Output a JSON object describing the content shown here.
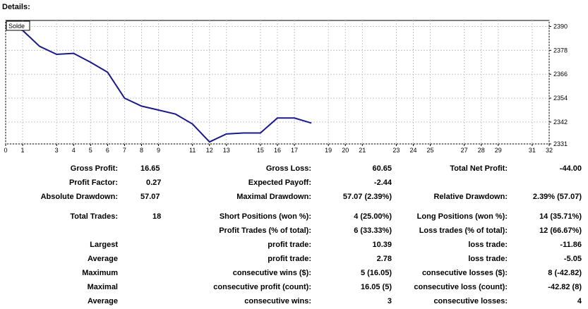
{
  "title": "Details:",
  "chart_data": {
    "type": "line",
    "legend": "Solde",
    "x": [
      0,
      1,
      2,
      3,
      4,
      5,
      6,
      7,
      8,
      9,
      10,
      11,
      12,
      13,
      14,
      15,
      16,
      17,
      18
    ],
    "values": [
      2390,
      2388,
      2380,
      2376,
      2376.5,
      2372,
      2367,
      2354,
      2350,
      2348,
      2346,
      2341,
      2332,
      2336,
      2336.5,
      2336.5,
      2344,
      2344,
      2341.5
    ],
    "xlim": [
      0,
      32
    ],
    "ylim": [
      2331,
      2393
    ],
    "x_ticks": [
      0,
      1,
      3,
      4,
      5,
      6,
      7,
      8,
      9,
      11,
      12,
      13,
      15,
      16,
      17,
      19,
      20,
      21,
      23,
      24,
      25,
      27,
      28,
      29,
      31,
      32
    ],
    "y_ticks": [
      2390,
      2378,
      2366,
      2354,
      2342,
      2331
    ],
    "line_color": "#1a1a8c"
  },
  "stats": {
    "gross_profit_label": "Gross Profit:",
    "gross_profit": "16.65",
    "gross_loss_label": "Gross Loss:",
    "gross_loss": "60.65",
    "total_net_profit_label": "Total Net Profit:",
    "total_net_profit": "-44.00",
    "profit_factor_label": "Profit Factor:",
    "profit_factor": "0.27",
    "expected_payoff_label": "Expected Payoff:",
    "expected_payoff": "-2.44",
    "absolute_drawdown_label": "Absolute Drawdown:",
    "absolute_drawdown": "57.07",
    "maximal_drawdown_label": "Maximal Drawdown:",
    "maximal_drawdown": "57.07 (2.39%)",
    "relative_drawdown_label": "Relative Drawdown:",
    "relative_drawdown": "2.39% (57.07)",
    "total_trades_label": "Total Trades:",
    "total_trades": "18",
    "short_positions_label": "Short Positions (won %):",
    "short_positions": "4 (25.00%)",
    "long_positions_label": "Long Positions (won %):",
    "long_positions": "14 (35.71%)",
    "profit_trades_label": "Profit Trades (% of total):",
    "profit_trades": "6 (33.33%)",
    "loss_trades_label": "Loss trades (% of total):",
    "loss_trades": "12 (66.67%)",
    "largest_label": "Largest",
    "largest_profit_label": "profit trade:",
    "largest_profit": "10.39",
    "largest_loss_label": "loss trade:",
    "largest_loss": "-11.86",
    "average_label": "Average",
    "average_profit_label": "profit trade:",
    "average_profit": "2.78",
    "average_loss_label": "loss trade:",
    "average_loss": "-5.05",
    "maximum_label": "Maximum",
    "max_consec_wins_label": "consecutive wins ($):",
    "max_consec_wins": "5 (16.05)",
    "max_consec_losses_label": "consecutive losses ($):",
    "max_consec_losses": "8 (-42.82)",
    "maximal_label": "Maximal",
    "maximal_consec_profit_label": "consecutive profit (count):",
    "maximal_consec_profit": "16.05 (5)",
    "maximal_consec_loss_label": "consecutive loss (count):",
    "maximal_consec_loss": "-42.82 (8)",
    "avg2_label": "Average",
    "avg_consec_wins_label": "consecutive wins:",
    "avg_consec_wins": "3",
    "avg_consec_losses_label": "consecutive losses:",
    "avg_consec_losses": "4"
  }
}
